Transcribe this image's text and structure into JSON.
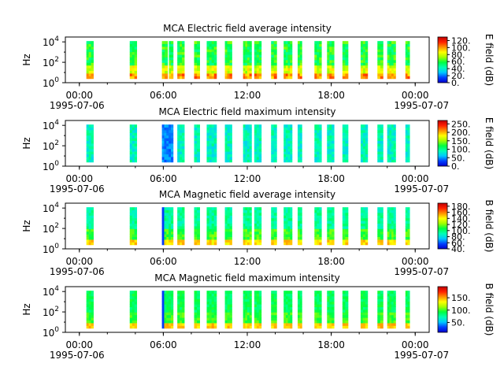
{
  "time_axis": {
    "tick_labels": [
      "00:00",
      "06:00",
      "12:00",
      "18:00",
      "00:00"
    ],
    "tick_hours": [
      0,
      6,
      12,
      18,
      24
    ],
    "minor_tick_hours": [
      0,
      2,
      4,
      6,
      8,
      10,
      12,
      14,
      16,
      18,
      20,
      22,
      24
    ],
    "start_date": "1995-07-06",
    "end_date": "1995-07-07",
    "xlim_hours": [
      -1,
      25
    ]
  },
  "y_tick_labels": [
    "10^0",
    "10^2",
    "10^4"
  ],
  "colormap_stops": [
    "#0000cc",
    "#0040ff",
    "#00c8ff",
    "#00ffb4",
    "#00ff40",
    "#a0ff00",
    "#ffff00",
    "#ff9000",
    "#ff2000",
    "#c00000"
  ],
  "chart_data": [
    {
      "type": "heatmap",
      "title": "MCA  Electric field average intensity",
      "ylabel": "Hz",
      "ylim": [
        1,
        30000
      ],
      "yscale": "log",
      "colorbar": {
        "label": "E field (dB)",
        "range": [
          0,
          130
        ],
        "ticks": [
          0,
          20,
          40,
          60,
          80,
          100,
          120
        ],
        "tick_labels": [
          "0.",
          "20.",
          "40.",
          "60.",
          "80.",
          "100.",
          "120."
        ]
      },
      "grid": false,
      "data_segments_hours": [
        [
          0.5,
          1.0
        ],
        [
          3.6,
          4.1
        ],
        [
          5.9,
          6.3
        ],
        [
          6.4,
          6.7
        ],
        [
          7.0,
          7.5
        ],
        [
          8.2,
          8.6
        ],
        [
          9.1,
          9.8
        ],
        [
          10.4,
          10.9
        ],
        [
          11.7,
          12.3
        ],
        [
          12.5,
          13.0
        ],
        [
          13.7,
          14.1
        ],
        [
          14.6,
          15.2
        ],
        [
          15.6,
          15.9
        ],
        [
          16.8,
          17.3
        ],
        [
          17.7,
          18.2
        ],
        [
          18.8,
          19.2
        ],
        [
          20.1,
          20.6
        ],
        [
          21.3,
          21.7
        ],
        [
          22.0,
          22.6
        ],
        [
          23.3,
          23.6
        ]
      ],
      "typical_levels": {
        "low": "orange/red",
        "mid": "yellow-green",
        "high": "green-cyan"
      }
    },
    {
      "type": "heatmap",
      "title": "MCA  Electric field maximum intensity",
      "ylabel": "Hz",
      "ylim": [
        1,
        30000
      ],
      "yscale": "log",
      "colorbar": {
        "label": "E field (dB)",
        "range": [
          0,
          270
        ],
        "ticks": [
          0,
          50,
          100,
          150,
          200,
          250
        ],
        "tick_labels": [
          "0.",
          "50.",
          "100.",
          "150.",
          "200.",
          "250."
        ]
      },
      "grid": false,
      "data_segments_hours": [
        [
          0.5,
          1.0
        ],
        [
          3.6,
          4.1
        ],
        [
          5.9,
          6.7
        ],
        [
          7.0,
          7.5
        ],
        [
          8.2,
          8.6
        ],
        [
          9.1,
          9.8
        ],
        [
          10.4,
          10.9
        ],
        [
          11.7,
          12.3
        ],
        [
          12.5,
          13.0
        ],
        [
          13.7,
          14.1
        ],
        [
          14.6,
          15.2
        ],
        [
          15.6,
          15.9
        ],
        [
          16.8,
          17.3
        ],
        [
          17.7,
          18.2
        ],
        [
          18.8,
          19.2
        ],
        [
          20.1,
          20.6
        ],
        [
          21.3,
          21.7
        ],
        [
          22.0,
          22.6
        ],
        [
          23.3,
          23.6
        ]
      ],
      "typical_levels": {
        "low": "cyan",
        "mid": "light blue",
        "high": "cyan"
      }
    },
    {
      "type": "heatmap",
      "title": "MCA  Magnetic field average intensity",
      "ylabel": "Hz",
      "ylim": [
        1,
        30000
      ],
      "yscale": "log",
      "colorbar": {
        "label": "B field (dB)",
        "range": [
          40,
          190
        ],
        "ticks": [
          40,
          60,
          80,
          100,
          120,
          140,
          160,
          180
        ],
        "tick_labels": [
          "40.",
          "60.",
          "80.",
          "100.",
          "120.",
          "140.",
          "160.",
          "180."
        ]
      },
      "grid": false,
      "data_segments_hours": [
        [
          0.5,
          1.0
        ],
        [
          3.6,
          4.1
        ],
        [
          5.9,
          6.7
        ],
        [
          7.0,
          7.5
        ],
        [
          8.2,
          8.6
        ],
        [
          9.1,
          9.8
        ],
        [
          10.4,
          10.9
        ],
        [
          11.7,
          12.3
        ],
        [
          12.5,
          13.0
        ],
        [
          13.7,
          14.1
        ],
        [
          14.6,
          15.2
        ],
        [
          15.6,
          15.9
        ],
        [
          16.8,
          17.3
        ],
        [
          17.7,
          18.2
        ],
        [
          18.8,
          19.2
        ],
        [
          20.1,
          20.6
        ],
        [
          21.3,
          21.7
        ],
        [
          22.0,
          22.6
        ],
        [
          23.3,
          23.6
        ]
      ],
      "typical_levels": {
        "low": "yellow/orange",
        "mid": "green",
        "high": "cyan"
      }
    },
    {
      "type": "heatmap",
      "title": "MCA  Magnetic field maximum intensity",
      "ylabel": "Hz",
      "ylim": [
        1,
        30000
      ],
      "yscale": "log",
      "colorbar": {
        "label": "B field (dB)",
        "range": [
          10,
          195
        ],
        "ticks": [
          50,
          100,
          150
        ],
        "tick_labels": [
          "50.",
          "100.",
          "150."
        ]
      },
      "grid": false,
      "data_segments_hours": [
        [
          0.5,
          1.0
        ],
        [
          3.6,
          4.1
        ],
        [
          5.9,
          6.7
        ],
        [
          7.0,
          7.5
        ],
        [
          8.2,
          8.6
        ],
        [
          9.1,
          9.8
        ],
        [
          10.4,
          10.9
        ],
        [
          11.7,
          12.3
        ],
        [
          12.5,
          13.0
        ],
        [
          13.7,
          14.1
        ],
        [
          14.6,
          15.2
        ],
        [
          15.6,
          15.9
        ],
        [
          16.8,
          17.3
        ],
        [
          17.7,
          18.2
        ],
        [
          18.8,
          19.2
        ],
        [
          20.1,
          20.6
        ],
        [
          21.3,
          21.7
        ],
        [
          22.0,
          22.6
        ],
        [
          23.3,
          23.6
        ]
      ],
      "typical_levels": {
        "low": "yellow/orange",
        "mid": "green",
        "high": "green"
      }
    }
  ]
}
